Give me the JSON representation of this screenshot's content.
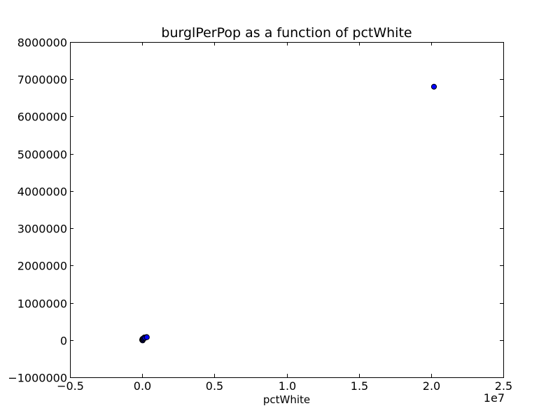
{
  "chart_data": {
    "type": "scatter",
    "title": "burglPerPop as a function of pctWhite",
    "xlabel": "pctWhite",
    "ylabel": "",
    "x_offset_label": "1e7",
    "x_scale": 10000000,
    "xlim": [
      -0.5,
      2.5
    ],
    "ylim": [
      -1000000,
      8000000
    ],
    "x_ticks": [
      -0.5,
      0.0,
      0.5,
      1.0,
      1.5,
      2.0,
      2.5
    ],
    "x_tick_labels": [
      "−0.5",
      "0.0",
      "0.5",
      "1.0",
      "1.5",
      "2.0",
      "2.5"
    ],
    "y_ticks": [
      -1000000,
      0,
      1000000,
      2000000,
      3000000,
      4000000,
      5000000,
      6000000,
      7000000,
      8000000
    ],
    "y_tick_labels": [
      "−1000000",
      "0",
      "1000000",
      "2000000",
      "3000000",
      "4000000",
      "5000000",
      "6000000",
      "7000000",
      "8000000"
    ],
    "grid": false,
    "marker_color": "#0000ff",
    "marker_edge_color": "#000000",
    "points": [
      {
        "x": 0.0,
        "y": 0
      },
      {
        "x": 0.0,
        "y": 10000
      },
      {
        "x": 0.0005,
        "y": 20000
      },
      {
        "x": 0.001,
        "y": 5000
      },
      {
        "x": 0.002,
        "y": 30000
      },
      {
        "x": 0.003,
        "y": -10000
      },
      {
        "x": 0.004,
        "y": 15000
      },
      {
        "x": 0.006,
        "y": 40000
      },
      {
        "x": 0.008,
        "y": 25000
      },
      {
        "x": 0.01,
        "y": 50000
      },
      {
        "x": 0.015,
        "y": 70000
      },
      {
        "x": 0.02,
        "y": 60000
      },
      {
        "x": 0.03,
        "y": 80000
      },
      {
        "x": 0.032,
        "y": 75000
      },
      {
        "x": 2.02,
        "y": 6800000
      }
    ]
  }
}
